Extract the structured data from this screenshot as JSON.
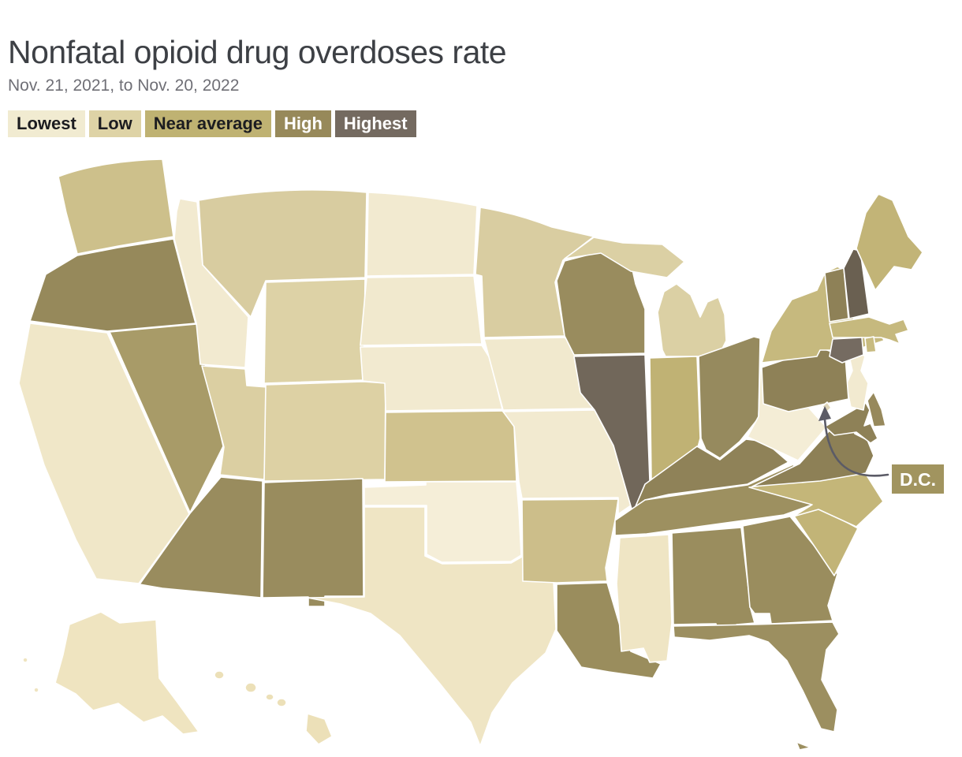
{
  "header": {
    "title": "Nonfatal opioid drug overdoses rate",
    "subtitle": "Nov. 21, 2021, to Nov. 20, 2022"
  },
  "legend": {
    "items": [
      {
        "label": "Lowest",
        "color": "#f1ebd1",
        "text_color": "#1c1c20"
      },
      {
        "label": "Low",
        "color": "#ded3a6",
        "text_color": "#1c1c20"
      },
      {
        "label": "Near average",
        "color": "#bfb272",
        "text_color": "#1c1c20"
      },
      {
        "label": "High",
        "color": "#97895a",
        "text_color": "#ffffff"
      },
      {
        "label": "Highest",
        "color": "#746a60",
        "text_color": "#ffffff"
      }
    ]
  },
  "map": {
    "stroke": "#ffffff",
    "callout": {
      "label": "D.C.",
      "color": "#a1945f",
      "text_color": "#ffffff",
      "arrow_color": "#5b5b66"
    },
    "states": [
      {
        "name": "Washington",
        "abbr": "WA",
        "category": "Near average",
        "fill": "#cdc08b"
      },
      {
        "name": "Oregon",
        "abbr": "OR",
        "category": "High",
        "fill": "#96895b"
      },
      {
        "name": "California",
        "abbr": "CA",
        "category": "Lowest",
        "fill": "#f0e7c8"
      },
      {
        "name": "Nevada",
        "abbr": "NV",
        "category": "High",
        "fill": "#a89b68"
      },
      {
        "name": "Idaho",
        "abbr": "ID",
        "category": "Lowest",
        "fill": "#f2ead0"
      },
      {
        "name": "Montana",
        "abbr": "MT",
        "category": "Low",
        "fill": "#d8cca0"
      },
      {
        "name": "Wyoming",
        "abbr": "WY",
        "category": "Low",
        "fill": "#ddd2a6"
      },
      {
        "name": "Utah",
        "abbr": "UT",
        "category": "Low",
        "fill": "#dbcfa2"
      },
      {
        "name": "Colorado",
        "abbr": "CO",
        "category": "Low",
        "fill": "#ddd1a4"
      },
      {
        "name": "Arizona",
        "abbr": "AZ",
        "category": "High",
        "fill": "#998c5e"
      },
      {
        "name": "New Mexico",
        "abbr": "NM",
        "category": "High",
        "fill": "#998c5e"
      },
      {
        "name": "North Dakota",
        "abbr": "ND",
        "category": "Lowest",
        "fill": "#f2ead0"
      },
      {
        "name": "South Dakota",
        "abbr": "SD",
        "category": "Lowest",
        "fill": "#f1e9ce"
      },
      {
        "name": "Nebraska",
        "abbr": "NE",
        "category": "Lowest",
        "fill": "#f2ead0"
      },
      {
        "name": "Kansas",
        "abbr": "KS",
        "category": "Near average",
        "fill": "#d0c28e"
      },
      {
        "name": "Oklahoma",
        "abbr": "OK",
        "category": "Lowest",
        "fill": "#f5eed8"
      },
      {
        "name": "Texas",
        "abbr": "TX",
        "category": "Lowest",
        "fill": "#efe5c4"
      },
      {
        "name": "Minnesota",
        "abbr": "MN",
        "category": "Low",
        "fill": "#d9cda1"
      },
      {
        "name": "Iowa",
        "abbr": "IA",
        "category": "Lowest",
        "fill": "#f1e9ce"
      },
      {
        "name": "Missouri",
        "abbr": "MO",
        "category": "Lowest",
        "fill": "#f2ead0"
      },
      {
        "name": "Arkansas",
        "abbr": "AR",
        "category": "Near average",
        "fill": "#ccbe8a"
      },
      {
        "name": "Louisiana",
        "abbr": "LA",
        "category": "High",
        "fill": "#9a8d5d"
      },
      {
        "name": "Wisconsin",
        "abbr": "WI",
        "category": "High",
        "fill": "#998c5e"
      },
      {
        "name": "Illinois",
        "abbr": "IL",
        "category": "Highest",
        "fill": "#71675a"
      },
      {
        "name": "Michigan",
        "abbr": "MI",
        "category": "Low",
        "fill": "#dbd0a4"
      },
      {
        "name": "Indiana",
        "abbr": "IN",
        "category": "Near average",
        "fill": "#c0b274"
      },
      {
        "name": "Ohio",
        "abbr": "OH",
        "category": "High",
        "fill": "#968a5e"
      },
      {
        "name": "Kentucky",
        "abbr": "KY",
        "category": "High",
        "fill": "#8f8258"
      },
      {
        "name": "Tennessee",
        "abbr": "TN",
        "category": "High",
        "fill": "#9d9060"
      },
      {
        "name": "Mississippi",
        "abbr": "MS",
        "category": "Lowest",
        "fill": "#efe5c4"
      },
      {
        "name": "Alabama",
        "abbr": "AL",
        "category": "High",
        "fill": "#9a8d5e"
      },
      {
        "name": "Georgia",
        "abbr": "GA",
        "category": "High",
        "fill": "#9a8d5e"
      },
      {
        "name": "Florida",
        "abbr": "FL",
        "category": "High",
        "fill": "#9c8f60"
      },
      {
        "name": "South Carolina",
        "abbr": "SC",
        "category": "Near average",
        "fill": "#c2b477"
      },
      {
        "name": "North Carolina",
        "abbr": "NC",
        "category": "Near average",
        "fill": "#c4b679"
      },
      {
        "name": "Virginia",
        "abbr": "VA",
        "category": "High",
        "fill": "#8d8056"
      },
      {
        "name": "West Virginia",
        "abbr": "WV",
        "category": "Lowest",
        "fill": "#f4edd6"
      },
      {
        "name": "Maryland",
        "abbr": "MD",
        "category": "High",
        "fill": "#8e8157"
      },
      {
        "name": "Delaware",
        "abbr": "DE",
        "category": "High",
        "fill": "#97895c"
      },
      {
        "name": "New Jersey",
        "abbr": "NJ",
        "category": "Lowest",
        "fill": "#f2ead0"
      },
      {
        "name": "Pennsylvania",
        "abbr": "PA",
        "category": "High",
        "fill": "#8e8157"
      },
      {
        "name": "New York",
        "abbr": "NY",
        "category": "Near average",
        "fill": "#c6b97e"
      },
      {
        "name": "Vermont",
        "abbr": "VT",
        "category": "High",
        "fill": "#8e8157"
      },
      {
        "name": "New Hampshire",
        "abbr": "NH",
        "category": "Highest",
        "fill": "#6a6051"
      },
      {
        "name": "Maine",
        "abbr": "ME",
        "category": "Near average",
        "fill": "#c2b477"
      },
      {
        "name": "Massachusetts",
        "abbr": "MA",
        "category": "Near average",
        "fill": "#c6b97e"
      },
      {
        "name": "Rhode Island",
        "abbr": "RI",
        "category": "Near average",
        "fill": "#c8bb80"
      },
      {
        "name": "Connecticut",
        "abbr": "CT",
        "category": "Highest",
        "fill": "#756b61"
      },
      {
        "name": "District of Columbia",
        "abbr": "DC",
        "category": "High",
        "fill": "#ded5b8"
      },
      {
        "name": "Alaska",
        "abbr": "AK",
        "category": "Lowest",
        "fill": "#efe4c0"
      },
      {
        "name": "Hawaii",
        "abbr": "HI",
        "category": "Lowest",
        "fill": "#ece0b8"
      }
    ]
  }
}
